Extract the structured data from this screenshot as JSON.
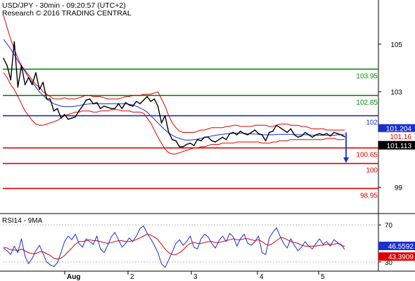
{
  "header": {
    "line1": "USD/JPY - 30min - 09:20:57 (UTC+2)",
    "line2": "Research © 2016 TRADING CENTRAL"
  },
  "colors": {
    "price": "#000000",
    "bollinger_upper": "#e00000",
    "bollinger_lower": "#e00000",
    "moving_average": "#1a2fd0",
    "resistance": "#0a8a0a",
    "pivot": "#1a2fd0",
    "support": "#e00000",
    "arrow": "#1a2fd0",
    "rsi": "#1a2fd0",
    "rsi_ma": "#e00000"
  },
  "chart_data": [
    {
      "type": "line",
      "name": "price",
      "ylim": [
        97.9,
        106.2
      ],
      "y_ticks": [
        "105",
        "103",
        "99"
      ],
      "x_tick_labels": [
        "Aug",
        "2",
        "3",
        "4",
        "5"
      ],
      "levels": [
        {
          "value": 103.95,
          "label": "103.95",
          "kind": "resistance"
        },
        {
          "value": 102.85,
          "label": "102.85",
          "kind": "resistance"
        },
        {
          "value": 102.0,
          "label": "102",
          "kind": "pivot"
        },
        {
          "value": 100.65,
          "label": "100.65",
          "kind": "support"
        },
        {
          "value": 100.0,
          "label": "100",
          "kind": "support"
        },
        {
          "value": 98.95,
          "label": "98.95",
          "kind": "support"
        }
      ],
      "current_markers": [
        {
          "label": "101.204",
          "value": 101.204,
          "style": "pivot"
        },
        {
          "label": "101.16",
          "value": 101.16,
          "style": "band"
        },
        {
          "label": "101.113",
          "value": 101.113,
          "style": "last"
        }
      ],
      "forecast_arrow": {
        "from": 101.3,
        "to": 100.05
      },
      "series": [
        {
          "name": "price",
          "values": [
            104.4,
            104.1,
            103.5,
            105.1,
            103.2,
            104.1,
            103.3,
            103.6,
            103.3,
            103.8,
            103.1,
            103.4,
            102.7,
            102.7,
            102.2,
            102.3,
            101.9,
            102.05,
            101.85,
            101.9,
            101.95,
            102.2,
            102.4,
            102.65,
            102.7,
            102.5,
            102.55,
            102.3,
            102.4,
            102.35,
            102.3,
            102.3,
            102.5,
            102.3,
            102.55,
            102.45,
            102.4,
            102.6,
            102.5,
            102.65,
            102.8,
            102.6,
            102.7,
            102.4,
            101.7,
            102.0,
            101.3,
            101.0,
            100.95,
            100.7,
            100.7,
            100.8,
            100.85,
            100.75,
            101.0,
            100.95,
            101.1,
            101.1,
            100.95,
            100.9,
            101.0,
            101.1,
            101.0,
            101.25,
            101.3,
            101.2,
            101.35,
            101.25,
            101.2,
            101.3,
            101.4,
            101.25,
            101.2,
            100.95,
            101.3,
            101.35,
            101.6,
            101.5,
            101.4,
            101.3,
            101.45,
            101.2,
            101.1,
            101.15,
            101.3,
            101.2,
            101.1,
            101.2,
            101.25,
            101.2,
            101.25,
            101.15,
            101.3,
            101.25,
            101.2,
            101.113
          ]
        },
        {
          "name": "bollinger_upper",
          "values": [
            106.2,
            105.7,
            105.2,
            104.8,
            104.4,
            104.1,
            103.9,
            103.7,
            103.5,
            103.3,
            103.2,
            103.0,
            102.9,
            102.8,
            102.7,
            102.7,
            102.7,
            102.75,
            102.7,
            102.7,
            102.7,
            102.75,
            102.8,
            102.85,
            102.85,
            102.8,
            102.8,
            102.8,
            102.75,
            102.7,
            102.7,
            102.7,
            102.7,
            102.75,
            102.8,
            102.8,
            102.85,
            102.85,
            102.85,
            102.9,
            102.9,
            102.9,
            102.95,
            103.0,
            102.7,
            102.4,
            102.0,
            101.7,
            101.5,
            101.35,
            101.3,
            101.3,
            101.3,
            101.3,
            101.35,
            101.4,
            101.4,
            101.45,
            101.5,
            101.5,
            101.5,
            101.5,
            101.55,
            101.55,
            101.6,
            101.6,
            101.55,
            101.55,
            101.55,
            101.55,
            101.6,
            101.6,
            101.6,
            101.6,
            101.55,
            101.55,
            101.6,
            101.65,
            101.65,
            101.65,
            101.6,
            101.6,
            101.6,
            101.55,
            101.55,
            101.5,
            101.45,
            101.45,
            101.45,
            101.45,
            101.4,
            101.4,
            101.4,
            101.4,
            101.4,
            101.4
          ]
        },
        {
          "name": "bollinger_lower",
          "values": [
            103.8,
            103.6,
            103.3,
            103.1,
            102.8,
            102.5,
            102.2,
            102.0,
            101.8,
            101.65,
            101.6,
            101.6,
            101.65,
            101.7,
            101.75,
            101.8,
            101.9,
            102.0,
            102.05,
            102.1,
            102.15,
            102.15,
            102.2,
            102.2,
            102.2,
            102.15,
            102.15,
            102.2,
            102.2,
            102.2,
            102.25,
            102.25,
            102.25,
            102.2,
            102.2,
            102.2,
            102.15,
            102.15,
            102.15,
            102.1,
            101.9,
            101.7,
            101.4,
            101.1,
            100.85,
            100.6,
            100.45,
            100.4,
            100.4,
            100.45,
            100.5,
            100.55,
            100.6,
            100.65,
            100.65,
            100.7,
            100.7,
            100.75,
            100.8,
            100.8,
            100.8,
            100.85,
            100.85,
            100.85,
            100.85,
            100.9,
            100.9,
            100.9,
            100.9,
            100.9,
            100.9,
            100.9,
            100.85,
            100.85,
            100.85,
            100.9,
            100.9,
            100.95,
            100.95,
            100.95,
            101.0,
            101.0,
            101.0,
            101.0,
            101.0,
            101.0,
            101.0,
            101.0,
            101.0,
            101.0,
            101.05,
            101.05,
            101.05,
            101.0,
            101.0,
            101.0
          ]
        },
        {
          "name": "moving_average",
          "values": [
            105.2,
            105.0,
            104.8,
            104.55,
            104.3,
            104.05,
            103.85,
            103.6,
            103.4,
            103.2,
            103.0,
            102.85,
            102.7,
            102.6,
            102.5,
            102.45,
            102.4,
            102.38,
            102.38,
            102.38,
            102.4,
            102.42,
            102.45,
            102.48,
            102.5,
            102.5,
            102.5,
            102.5,
            102.5,
            102.5,
            102.5,
            102.5,
            102.5,
            102.5,
            102.5,
            102.48,
            102.45,
            102.4,
            102.32,
            102.25,
            102.15,
            102.0,
            101.85,
            101.7,
            101.55,
            101.4,
            101.28,
            101.18,
            101.1,
            101.05,
            101.0,
            100.98,
            100.98,
            101.0,
            101.02,
            101.05,
            101.1,
            101.12,
            101.15,
            101.18,
            101.2,
            101.22,
            101.24,
            101.25,
            101.26,
            101.27,
            101.27,
            101.26,
            101.25,
            101.24,
            101.23,
            101.22,
            101.2,
            101.2,
            101.2,
            101.2,
            101.21,
            101.22,
            101.22,
            101.22,
            101.22,
            101.21,
            101.2,
            101.2,
            101.2,
            101.2,
            101.19,
            101.18,
            101.18,
            101.18,
            101.18,
            101.18,
            101.18,
            101.2,
            101.2,
            101.2
          ]
        }
      ]
    },
    {
      "type": "line",
      "name": "RSI14 - 9MA",
      "title": "RSI14 - 9MA",
      "ylim": [
        20,
        80
      ],
      "y_ticks": [
        "70",
        "30"
      ],
      "current_markers": [
        {
          "label": "46.5592",
          "value": 46.5592,
          "style": "rsi"
        },
        {
          "label": "43.3909",
          "value": 43.3909,
          "style": "rsi_ma"
        }
      ],
      "series": [
        {
          "name": "RSI",
          "values": [
            45,
            42,
            38,
            47,
            40,
            55,
            36,
            28,
            34,
            42,
            48,
            39,
            30,
            27,
            25,
            29,
            40,
            52,
            58,
            54,
            60,
            50,
            46,
            55,
            52,
            49,
            58,
            44,
            40,
            48,
            57,
            62,
            54,
            46,
            50,
            56,
            52,
            58,
            66,
            69,
            61,
            55,
            48,
            40,
            28,
            24,
            32,
            41,
            50,
            54,
            48,
            52,
            58,
            46,
            44,
            55,
            60,
            57,
            50,
            45,
            53,
            58,
            52,
            61,
            57,
            47,
            55,
            60,
            50,
            48,
            52,
            58,
            40,
            38,
            56,
            62,
            67,
            58,
            50,
            45,
            55,
            48,
            42,
            46,
            52,
            47,
            44,
            50,
            55,
            49,
            52,
            47,
            54,
            51,
            48,
            46.5592
          ]
        },
        {
          "name": "RSI MA",
          "values": [
            46,
            45,
            43,
            43,
            42,
            44,
            42,
            40,
            39,
            39,
            41,
            41,
            39,
            37,
            34,
            33,
            34,
            37,
            41,
            45,
            49,
            52,
            52,
            53,
            54,
            53,
            53,
            52,
            51,
            50,
            51,
            52,
            53,
            53,
            52,
            52,
            53,
            54,
            56,
            58,
            60,
            59,
            57,
            54,
            49,
            44,
            40,
            38,
            38,
            40,
            43,
            47,
            50,
            51,
            50,
            50,
            51,
            52,
            52,
            51,
            51,
            52,
            53,
            54,
            55,
            54,
            54,
            55,
            55,
            54,
            53,
            54,
            52,
            49,
            48,
            50,
            53,
            56,
            56,
            54,
            52,
            51,
            50,
            48,
            47,
            47,
            47,
            47,
            48,
            48,
            49,
            49,
            49,
            50,
            49,
            43.3909
          ]
        }
      ]
    }
  ]
}
